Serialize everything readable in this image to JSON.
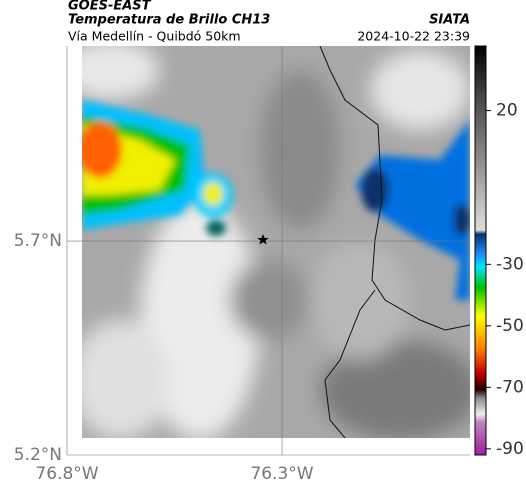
{
  "header": {
    "source": "GOES-EAST",
    "title": "Temperatura de Brillo CH13",
    "subtitle": "Vía Medellín - Quibdó 50km",
    "credit": "SIATA",
    "timestamp": "2024-10-22 23:39"
  },
  "map": {
    "xlim": [
      -76.8,
      -75.863
    ],
    "ylim": [
      5.2,
      6.156
    ],
    "xticks": [
      {
        "value": -76.8,
        "label": "76.8°W"
      },
      {
        "value": -76.3,
        "label": "76.3°W"
      }
    ],
    "yticks": [
      {
        "value": 5.7,
        "label": "5.7°N"
      },
      {
        "value": 5.2,
        "label": "5.2°N"
      }
    ]
  },
  "colorbar": {
    "ylim": [
      -92,
      41
    ],
    "yticks": [
      20,
      -30,
      -50,
      -70,
      -90
    ]
  }
}
